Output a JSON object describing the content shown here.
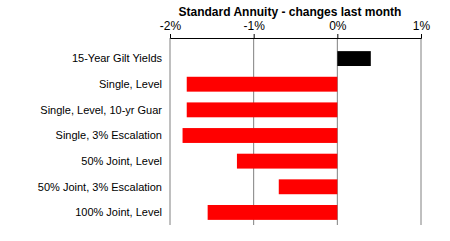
{
  "chart_data": {
    "type": "bar",
    "orientation": "horizontal",
    "title": "Standard Annuity - changes last month",
    "categories": [
      "15-Year Gilt Yields",
      "Single, Level",
      "Single, Level, 10-yr Guar",
      "Single, 3% Escalation",
      "50% Joint, Level",
      "50% Joint, 3% Escalation",
      "100% Joint, Level"
    ],
    "values": [
      0.4,
      -1.8,
      -1.8,
      -1.85,
      -1.2,
      -0.7,
      -1.55
    ],
    "colors": [
      "#000000",
      "#ff0000",
      "#ff0000",
      "#ff0000",
      "#ff0000",
      "#ff0000",
      "#ff0000"
    ],
    "xlim": [
      -2,
      1
    ],
    "xticks": [
      {
        "value": -2,
        "label": "-2%"
      },
      {
        "value": -1,
        "label": "-1%"
      },
      {
        "value": 0,
        "label": "0%"
      },
      {
        "value": 1,
        "label": "1%"
      }
    ],
    "grid": true
  }
}
